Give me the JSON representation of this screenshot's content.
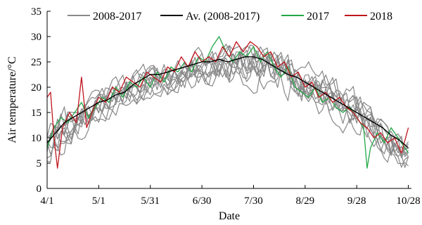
{
  "chart_data": {
    "type": "line",
    "xlabel": "Date",
    "ylabel": "Air temperature/°C",
    "ylim": [
      0,
      35
    ],
    "yticks": [
      0,
      5,
      10,
      15,
      20,
      25,
      30,
      35
    ],
    "xtick_labels": [
      "4/1",
      "5/1",
      "5/31",
      "6/30",
      "7/30",
      "8/29",
      "9/28",
      "10/28"
    ],
    "xtick_days": [
      0,
      30,
      60,
      90,
      120,
      150,
      180,
      210
    ],
    "x_unit": "days from 4/1",
    "grid": false,
    "legend_position": "top",
    "series": [
      {
        "name": "2008-2017",
        "color": "#888888",
        "note": "ten individual years, each plotted as a grey line",
        "band_lower_approx": [
          [
            0,
            2
          ],
          [
            15,
            6
          ],
          [
            30,
            11
          ],
          [
            60,
            16
          ],
          [
            90,
            18
          ],
          [
            120,
            18
          ],
          [
            150,
            14
          ],
          [
            180,
            9
          ],
          [
            210,
            1
          ]
        ],
        "band_upper_approx": [
          [
            0,
            16
          ],
          [
            15,
            20
          ],
          [
            30,
            22
          ],
          [
            60,
            26
          ],
          [
            90,
            29
          ],
          [
            120,
            31
          ],
          [
            150,
            27
          ],
          [
            180,
            21
          ],
          [
            210,
            12
          ]
        ]
      },
      {
        "name": "Av. (2008-2017)",
        "color": "#000000",
        "points": [
          [
            0,
            9
          ],
          [
            5,
            11
          ],
          [
            10,
            13
          ],
          [
            15,
            14
          ],
          [
            20,
            15
          ],
          [
            25,
            16
          ],
          [
            30,
            17
          ],
          [
            35,
            17.5
          ],
          [
            40,
            18.5
          ],
          [
            45,
            19
          ],
          [
            50,
            20.5
          ],
          [
            55,
            21.5
          ],
          [
            60,
            22.5
          ],
          [
            65,
            22.5
          ],
          [
            70,
            23
          ],
          [
            75,
            23.5
          ],
          [
            80,
            24
          ],
          [
            85,
            24.5
          ],
          [
            90,
            25
          ],
          [
            95,
            25
          ],
          [
            100,
            25.5
          ],
          [
            105,
            25
          ],
          [
            110,
            25.5
          ],
          [
            115,
            26
          ],
          [
            120,
            26
          ],
          [
            125,
            25.5
          ],
          [
            130,
            24.5
          ],
          [
            135,
            23.5
          ],
          [
            140,
            22.5
          ],
          [
            145,
            22
          ],
          [
            150,
            21
          ],
          [
            155,
            20
          ],
          [
            160,
            19
          ],
          [
            165,
            18
          ],
          [
            170,
            17
          ],
          [
            175,
            16
          ],
          [
            180,
            15
          ],
          [
            185,
            14
          ],
          [
            190,
            13
          ],
          [
            195,
            12
          ],
          [
            200,
            10.5
          ],
          [
            205,
            9.5
          ],
          [
            210,
            8
          ]
        ]
      },
      {
        "name": "2017",
        "color": "#22a745",
        "points": [
          [
            0,
            8
          ],
          [
            4,
            12
          ],
          [
            8,
            14
          ],
          [
            12,
            13
          ],
          [
            16,
            15
          ],
          [
            20,
            17
          ],
          [
            24,
            14
          ],
          [
            28,
            16
          ],
          [
            32,
            18
          ],
          [
            36,
            17
          ],
          [
            40,
            20
          ],
          [
            44,
            18
          ],
          [
            48,
            21
          ],
          [
            52,
            20
          ],
          [
            56,
            22
          ],
          [
            60,
            20
          ],
          [
            64,
            23
          ],
          [
            68,
            21
          ],
          [
            72,
            24
          ],
          [
            76,
            23
          ],
          [
            80,
            25
          ],
          [
            84,
            23
          ],
          [
            88,
            26
          ],
          [
            92,
            25
          ],
          [
            96,
            28
          ],
          [
            100,
            30
          ],
          [
            104,
            27
          ],
          [
            108,
            25
          ],
          [
            112,
            27
          ],
          [
            116,
            26
          ],
          [
            120,
            28
          ],
          [
            124,
            25
          ],
          [
            128,
            27
          ],
          [
            132,
            24
          ],
          [
            136,
            22
          ],
          [
            140,
            24
          ],
          [
            144,
            20
          ],
          [
            148,
            19
          ],
          [
            152,
            18
          ],
          [
            156,
            20
          ],
          [
            160,
            17
          ],
          [
            164,
            18
          ],
          [
            168,
            16
          ],
          [
            172,
            15
          ],
          [
            176,
            16
          ],
          [
            180,
            14
          ],
          [
            184,
            12
          ],
          [
            186,
            4
          ],
          [
            188,
            8
          ],
          [
            192,
            11
          ],
          [
            196,
            9
          ],
          [
            200,
            12
          ],
          [
            204,
            10
          ],
          [
            208,
            8
          ],
          [
            210,
            7
          ]
        ]
      },
      {
        "name": "2018",
        "color": "#c0161e",
        "points": [
          [
            0,
            18
          ],
          [
            2,
            19
          ],
          [
            4,
            10
          ],
          [
            6,
            4
          ],
          [
            9,
            12
          ],
          [
            13,
            15
          ],
          [
            17,
            13
          ],
          [
            20,
            22
          ],
          [
            23,
            12
          ],
          [
            26,
            15
          ],
          [
            30,
            18
          ],
          [
            34,
            17
          ],
          [
            38,
            20
          ],
          [
            42,
            19
          ],
          [
            46,
            22
          ],
          [
            50,
            21
          ],
          [
            54,
            20
          ],
          [
            58,
            23
          ],
          [
            62,
            22
          ],
          [
            66,
            21
          ],
          [
            70,
            24
          ],
          [
            74,
            23
          ],
          [
            78,
            26
          ],
          [
            82,
            24
          ],
          [
            86,
            27
          ],
          [
            90,
            25
          ],
          [
            94,
            26
          ],
          [
            98,
            25
          ],
          [
            102,
            28
          ],
          [
            106,
            26
          ],
          [
            110,
            29
          ],
          [
            114,
            27
          ],
          [
            118,
            29
          ],
          [
            122,
            28
          ],
          [
            126,
            26
          ],
          [
            130,
            27
          ],
          [
            134,
            24
          ],
          [
            138,
            25
          ],
          [
            142,
            22
          ],
          [
            146,
            23
          ],
          [
            150,
            20
          ],
          [
            154,
            21
          ],
          [
            158,
            18
          ],
          [
            162,
            19
          ],
          [
            166,
            17
          ],
          [
            170,
            18
          ],
          [
            174,
            16
          ],
          [
            178,
            15
          ],
          [
            182,
            13
          ],
          [
            186,
            12
          ],
          [
            190,
            10
          ],
          [
            194,
            11
          ],
          [
            198,
            9
          ],
          [
            202,
            10
          ],
          [
            206,
            7
          ],
          [
            210,
            12
          ]
        ]
      }
    ]
  }
}
